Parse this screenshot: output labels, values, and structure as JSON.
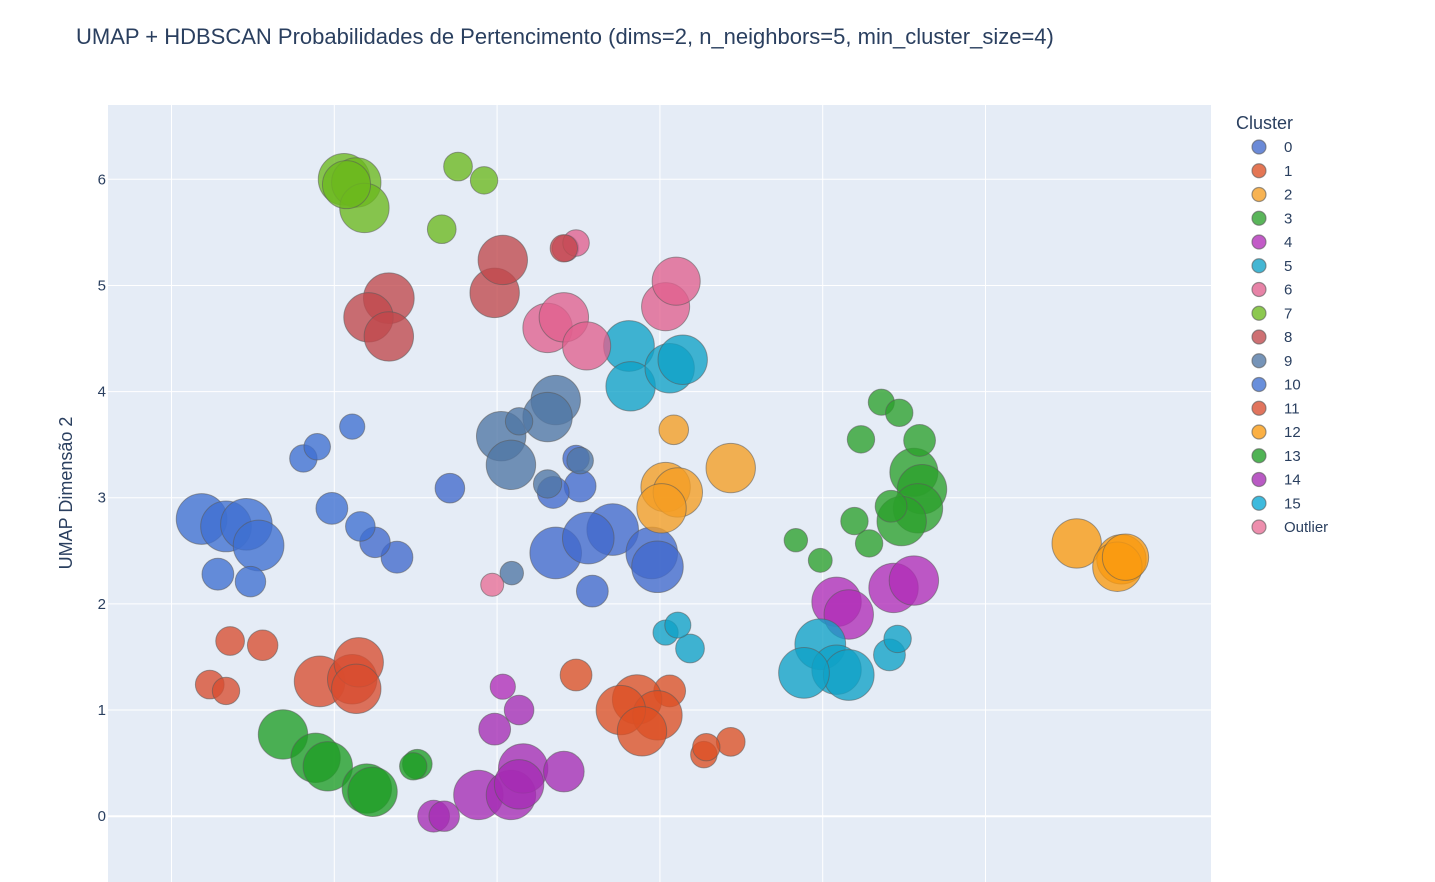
{
  "chart_data": {
    "type": "scatter",
    "title": "UMAP + HDBSCAN Probabilidades de Pertencimento (dims=2, n_neighbors=5, min_cluster_size=4)",
    "xlabel": "",
    "ylabel": "UMAP Dimensão 2",
    "xlim": [
      -0.9,
      12.65
    ],
    "ylim": [
      -0.62,
      6.7
    ],
    "x_gridlines": [
      -0.12,
      1.88,
      3.88,
      5.88,
      7.88,
      9.88
    ],
    "y_ticks": [
      0,
      1,
      2,
      3,
      4,
      5,
      6
    ],
    "grid": true,
    "legend": {
      "title": "Cluster",
      "position": "right"
    },
    "series": [
      {
        "name": "0",
        "color": "#4169cc",
        "points": [
          {
            "x": 3.3,
            "y": 3.09,
            "p": 0.4
          },
          {
            "x": 5.05,
            "y": 2.12,
            "p": 0.45
          },
          {
            "x": 5.3,
            "y": 2.7,
            "p": 0.9
          },
          {
            "x": 4.6,
            "y": 2.48,
            "p": 0.9
          },
          {
            "x": 2.65,
            "y": 2.44,
            "p": 0.45
          },
          {
            "x": 5.78,
            "y": 2.48,
            "p": 0.9
          },
          {
            "x": 2.38,
            "y": 2.58,
            "p": 0.42
          },
          {
            "x": 4.9,
            "y": 3.11,
            "p": 0.45
          },
          {
            "x": 4.57,
            "y": 3.05,
            "p": 0.45
          },
          {
            "x": 4.85,
            "y": 3.37,
            "p": 0.33
          },
          {
            "x": 5.0,
            "y": 2.62,
            "p": 0.9
          },
          {
            "x": 5.85,
            "y": 2.35,
            "p": 0.9
          }
        ]
      },
      {
        "name": "1",
        "color": "#dd4f24",
        "points": [
          {
            "x": 6.0,
            "y": 1.18,
            "p": 0.45
          },
          {
            "x": 5.6,
            "y": 1.1,
            "p": 0.85
          },
          {
            "x": 5.85,
            "y": 0.95,
            "p": 0.85
          },
          {
            "x": 5.4,
            "y": 1.0,
            "p": 0.85
          },
          {
            "x": 5.66,
            "y": 0.8,
            "p": 0.85
          },
          {
            "x": 4.85,
            "y": 1.33,
            "p": 0.45
          },
          {
            "x": 6.75,
            "y": 0.7,
            "p": 0.38
          },
          {
            "x": 6.42,
            "y": 0.58,
            "p": 0.33
          },
          {
            "x": 6.45,
            "y": 0.65,
            "p": 0.35
          }
        ]
      },
      {
        "name": "2",
        "color": "#f59d22",
        "points": [
          {
            "x": 6.05,
            "y": 3.64,
            "p": 0.4
          },
          {
            "x": 6.75,
            "y": 3.28,
            "p": 0.85
          },
          {
            "x": 5.95,
            "y": 3.1,
            "p": 0.85
          },
          {
            "x": 6.1,
            "y": 3.05,
            "p": 0.85
          },
          {
            "x": 5.9,
            "y": 2.9,
            "p": 0.85
          }
        ]
      },
      {
        "name": "3",
        "color": "#2ca02c",
        "points": [
          {
            "x": 8.6,
            "y": 3.9,
            "p": 0.32
          },
          {
            "x": 8.82,
            "y": 3.8,
            "p": 0.35
          },
          {
            "x": 8.35,
            "y": 3.55,
            "p": 0.35
          },
          {
            "x": 9.0,
            "y": 3.24,
            "p": 0.82
          },
          {
            "x": 9.1,
            "y": 3.08,
            "p": 0.85
          },
          {
            "x": 9.05,
            "y": 2.9,
            "p": 0.85
          },
          {
            "x": 8.85,
            "y": 2.78,
            "p": 0.85
          },
          {
            "x": 8.72,
            "y": 2.92,
            "p": 0.45
          },
          {
            "x": 8.27,
            "y": 2.78,
            "p": 0.35
          },
          {
            "x": 8.45,
            "y": 2.57,
            "p": 0.35
          },
          {
            "x": 7.55,
            "y": 2.6,
            "p": 0.26
          },
          {
            "x": 7.85,
            "y": 2.41,
            "p": 0.27
          },
          {
            "x": 9.07,
            "y": 3.54,
            "p": 0.45
          }
        ]
      },
      {
        "name": "4",
        "color": "#b12db7",
        "points": [
          {
            "x": 8.05,
            "y": 2.02,
            "p": 0.85
          },
          {
            "x": 8.2,
            "y": 1.9,
            "p": 0.85
          },
          {
            "x": 8.75,
            "y": 2.15,
            "p": 0.85
          },
          {
            "x": 9.0,
            "y": 2.22,
            "p": 0.85
          },
          {
            "x": 3.95,
            "y": 1.22,
            "p": 0.3
          }
        ]
      },
      {
        "name": "5",
        "color": "#0fa2c7",
        "points": [
          {
            "x": 5.5,
            "y": 4.43,
            "p": 0.88
          },
          {
            "x": 5.52,
            "y": 4.05,
            "p": 0.85
          },
          {
            "x": 6.0,
            "y": 4.22,
            "p": 0.85
          },
          {
            "x": 6.16,
            "y": 4.3,
            "p": 0.85
          },
          {
            "x": 7.85,
            "y": 1.62,
            "p": 0.88
          },
          {
            "x": 8.05,
            "y": 1.38,
            "p": 0.85
          },
          {
            "x": 8.2,
            "y": 1.33,
            "p": 0.88
          },
          {
            "x": 7.65,
            "y": 1.35,
            "p": 0.88
          },
          {
            "x": 8.7,
            "y": 1.52,
            "p": 0.45
          },
          {
            "x": 8.8,
            "y": 1.67,
            "p": 0.35
          },
          {
            "x": 6.25,
            "y": 1.58,
            "p": 0.38
          },
          {
            "x": 5.95,
            "y": 1.73,
            "p": 0.3
          },
          {
            "x": 6.1,
            "y": 1.8,
            "p": 0.32
          }
        ]
      },
      {
        "name": "6",
        "color": "#e0608e",
        "points": [
          {
            "x": 4.5,
            "y": 4.6,
            "p": 0.85
          },
          {
            "x": 4.7,
            "y": 4.7,
            "p": 0.85
          },
          {
            "x": 4.98,
            "y": 4.43,
            "p": 0.82
          },
          {
            "x": 5.95,
            "y": 4.8,
            "p": 0.82
          },
          {
            "x": 6.08,
            "y": 5.04,
            "p": 0.82
          },
          {
            "x": 4.72,
            "y": 5.35,
            "p": 0.33
          },
          {
            "x": 4.85,
            "y": 5.4,
            "p": 0.33
          }
        ]
      },
      {
        "name": "7",
        "color": "#6cb81e",
        "points": [
          {
            "x": 2.0,
            "y": 6.0,
            "p": 0.9
          },
          {
            "x": 2.15,
            "y": 5.97,
            "p": 0.85
          },
          {
            "x": 2.25,
            "y": 5.73,
            "p": 0.85
          },
          {
            "x": 2.03,
            "y": 5.95,
            "p": 0.82
          },
          {
            "x": 3.4,
            "y": 6.12,
            "p": 0.38
          },
          {
            "x": 3.72,
            "y": 5.99,
            "p": 0.35
          },
          {
            "x": 3.2,
            "y": 5.53,
            "p": 0.38
          }
        ]
      },
      {
        "name": "8",
        "color": "#c0484c",
        "points": [
          {
            "x": 2.55,
            "y": 4.88,
            "p": 0.88
          },
          {
            "x": 2.3,
            "y": 4.7,
            "p": 0.85
          },
          {
            "x": 2.55,
            "y": 4.52,
            "p": 0.85
          },
          {
            "x": 3.85,
            "y": 4.93,
            "p": 0.85
          },
          {
            "x": 3.95,
            "y": 5.24,
            "p": 0.85
          },
          {
            "x": 4.7,
            "y": 5.35,
            "p": 0.35
          }
        ]
      },
      {
        "name": "9",
        "color": "#4f76a4",
        "points": [
          {
            "x": 4.6,
            "y": 3.92,
            "p": 0.85
          },
          {
            "x": 4.5,
            "y": 3.76,
            "p": 0.85
          },
          {
            "x": 3.93,
            "y": 3.58,
            "p": 0.85
          },
          {
            "x": 4.05,
            "y": 3.31,
            "p": 0.85
          },
          {
            "x": 4.15,
            "y": 3.72,
            "p": 0.35
          },
          {
            "x": 4.5,
            "y": 3.13,
            "p": 0.37
          },
          {
            "x": 4.9,
            "y": 3.35,
            "p": 0.33
          },
          {
            "x": 4.06,
            "y": 2.29,
            "p": 0.26
          }
        ]
      },
      {
        "name": "10",
        "color": "#3f6fd1",
        "points": [
          {
            "x": 0.25,
            "y": 2.8,
            "p": 0.88
          },
          {
            "x": 0.55,
            "y": 2.73,
            "p": 0.88
          },
          {
            "x": 0.8,
            "y": 2.75,
            "p": 0.9
          },
          {
            "x": 0.95,
            "y": 2.55,
            "p": 0.88
          },
          {
            "x": 1.85,
            "y": 2.9,
            "p": 0.45
          },
          {
            "x": 2.2,
            "y": 2.73,
            "p": 0.4
          },
          {
            "x": 1.5,
            "y": 3.37,
            "p": 0.35
          },
          {
            "x": 1.67,
            "y": 3.48,
            "p": 0.33
          },
          {
            "x": 2.1,
            "y": 3.67,
            "p": 0.3
          },
          {
            "x": 0.45,
            "y": 2.28,
            "p": 0.45
          },
          {
            "x": 0.85,
            "y": 2.21,
            "p": 0.42
          }
        ]
      },
      {
        "name": "11",
        "color": "#d94d30",
        "points": [
          {
            "x": 0.6,
            "y": 1.65,
            "p": 0.38
          },
          {
            "x": 1.0,
            "y": 1.61,
            "p": 0.42
          },
          {
            "x": 0.35,
            "y": 1.24,
            "p": 0.38
          },
          {
            "x": 0.55,
            "y": 1.18,
            "p": 0.35
          },
          {
            "x": 1.7,
            "y": 1.27,
            "p": 0.88
          },
          {
            "x": 2.1,
            "y": 1.29,
            "p": 0.85
          },
          {
            "x": 2.18,
            "y": 1.45,
            "p": 0.85
          },
          {
            "x": 2.15,
            "y": 1.2,
            "p": 0.85
          }
        ]
      },
      {
        "name": "12",
        "color": "#fa9a10",
        "points": [
          {
            "x": 11.0,
            "y": 2.57,
            "p": 0.85
          },
          {
            "x": 11.55,
            "y": 2.42,
            "p": 0.85
          },
          {
            "x": 11.5,
            "y": 2.35,
            "p": 0.85
          },
          {
            "x": 11.6,
            "y": 2.44,
            "p": 0.78
          }
        ]
      },
      {
        "name": "13",
        "color": "#1f9e25",
        "points": [
          {
            "x": 1.25,
            "y": 0.77,
            "p": 0.85
          },
          {
            "x": 1.65,
            "y": 0.55,
            "p": 0.85
          },
          {
            "x": 1.8,
            "y": 0.47,
            "p": 0.85
          },
          {
            "x": 2.28,
            "y": 0.26,
            "p": 0.85
          },
          {
            "x": 2.35,
            "y": 0.23,
            "p": 0.85
          },
          {
            "x": 2.9,
            "y": 0.49,
            "p": 0.4
          },
          {
            "x": 2.85,
            "y": 0.47,
            "p": 0.35
          }
        ]
      },
      {
        "name": "14",
        "color": "#a52bb3",
        "points": [
          {
            "x": 3.65,
            "y": 0.2,
            "p": 0.85
          },
          {
            "x": 4.05,
            "y": 0.2,
            "p": 0.85
          },
          {
            "x": 4.2,
            "y": 0.45,
            "p": 0.85
          },
          {
            "x": 4.15,
            "y": 0.3,
            "p": 0.85
          },
          {
            "x": 4.7,
            "y": 0.42,
            "p": 0.65
          },
          {
            "x": 3.1,
            "y": 0.0,
            "p": 0.45
          },
          {
            "x": 3.23,
            "y": 0.0,
            "p": 0.42
          },
          {
            "x": 3.85,
            "y": 0.82,
            "p": 0.45
          },
          {
            "x": 4.15,
            "y": 1.0,
            "p": 0.4
          }
        ]
      },
      {
        "name": "15",
        "color": "#08a6d4",
        "points": []
      },
      {
        "name": "Outlier",
        "color": "#e86e96",
        "points": [
          {
            "x": 3.82,
            "y": 2.18,
            "p": 0.25
          }
        ]
      }
    ]
  }
}
